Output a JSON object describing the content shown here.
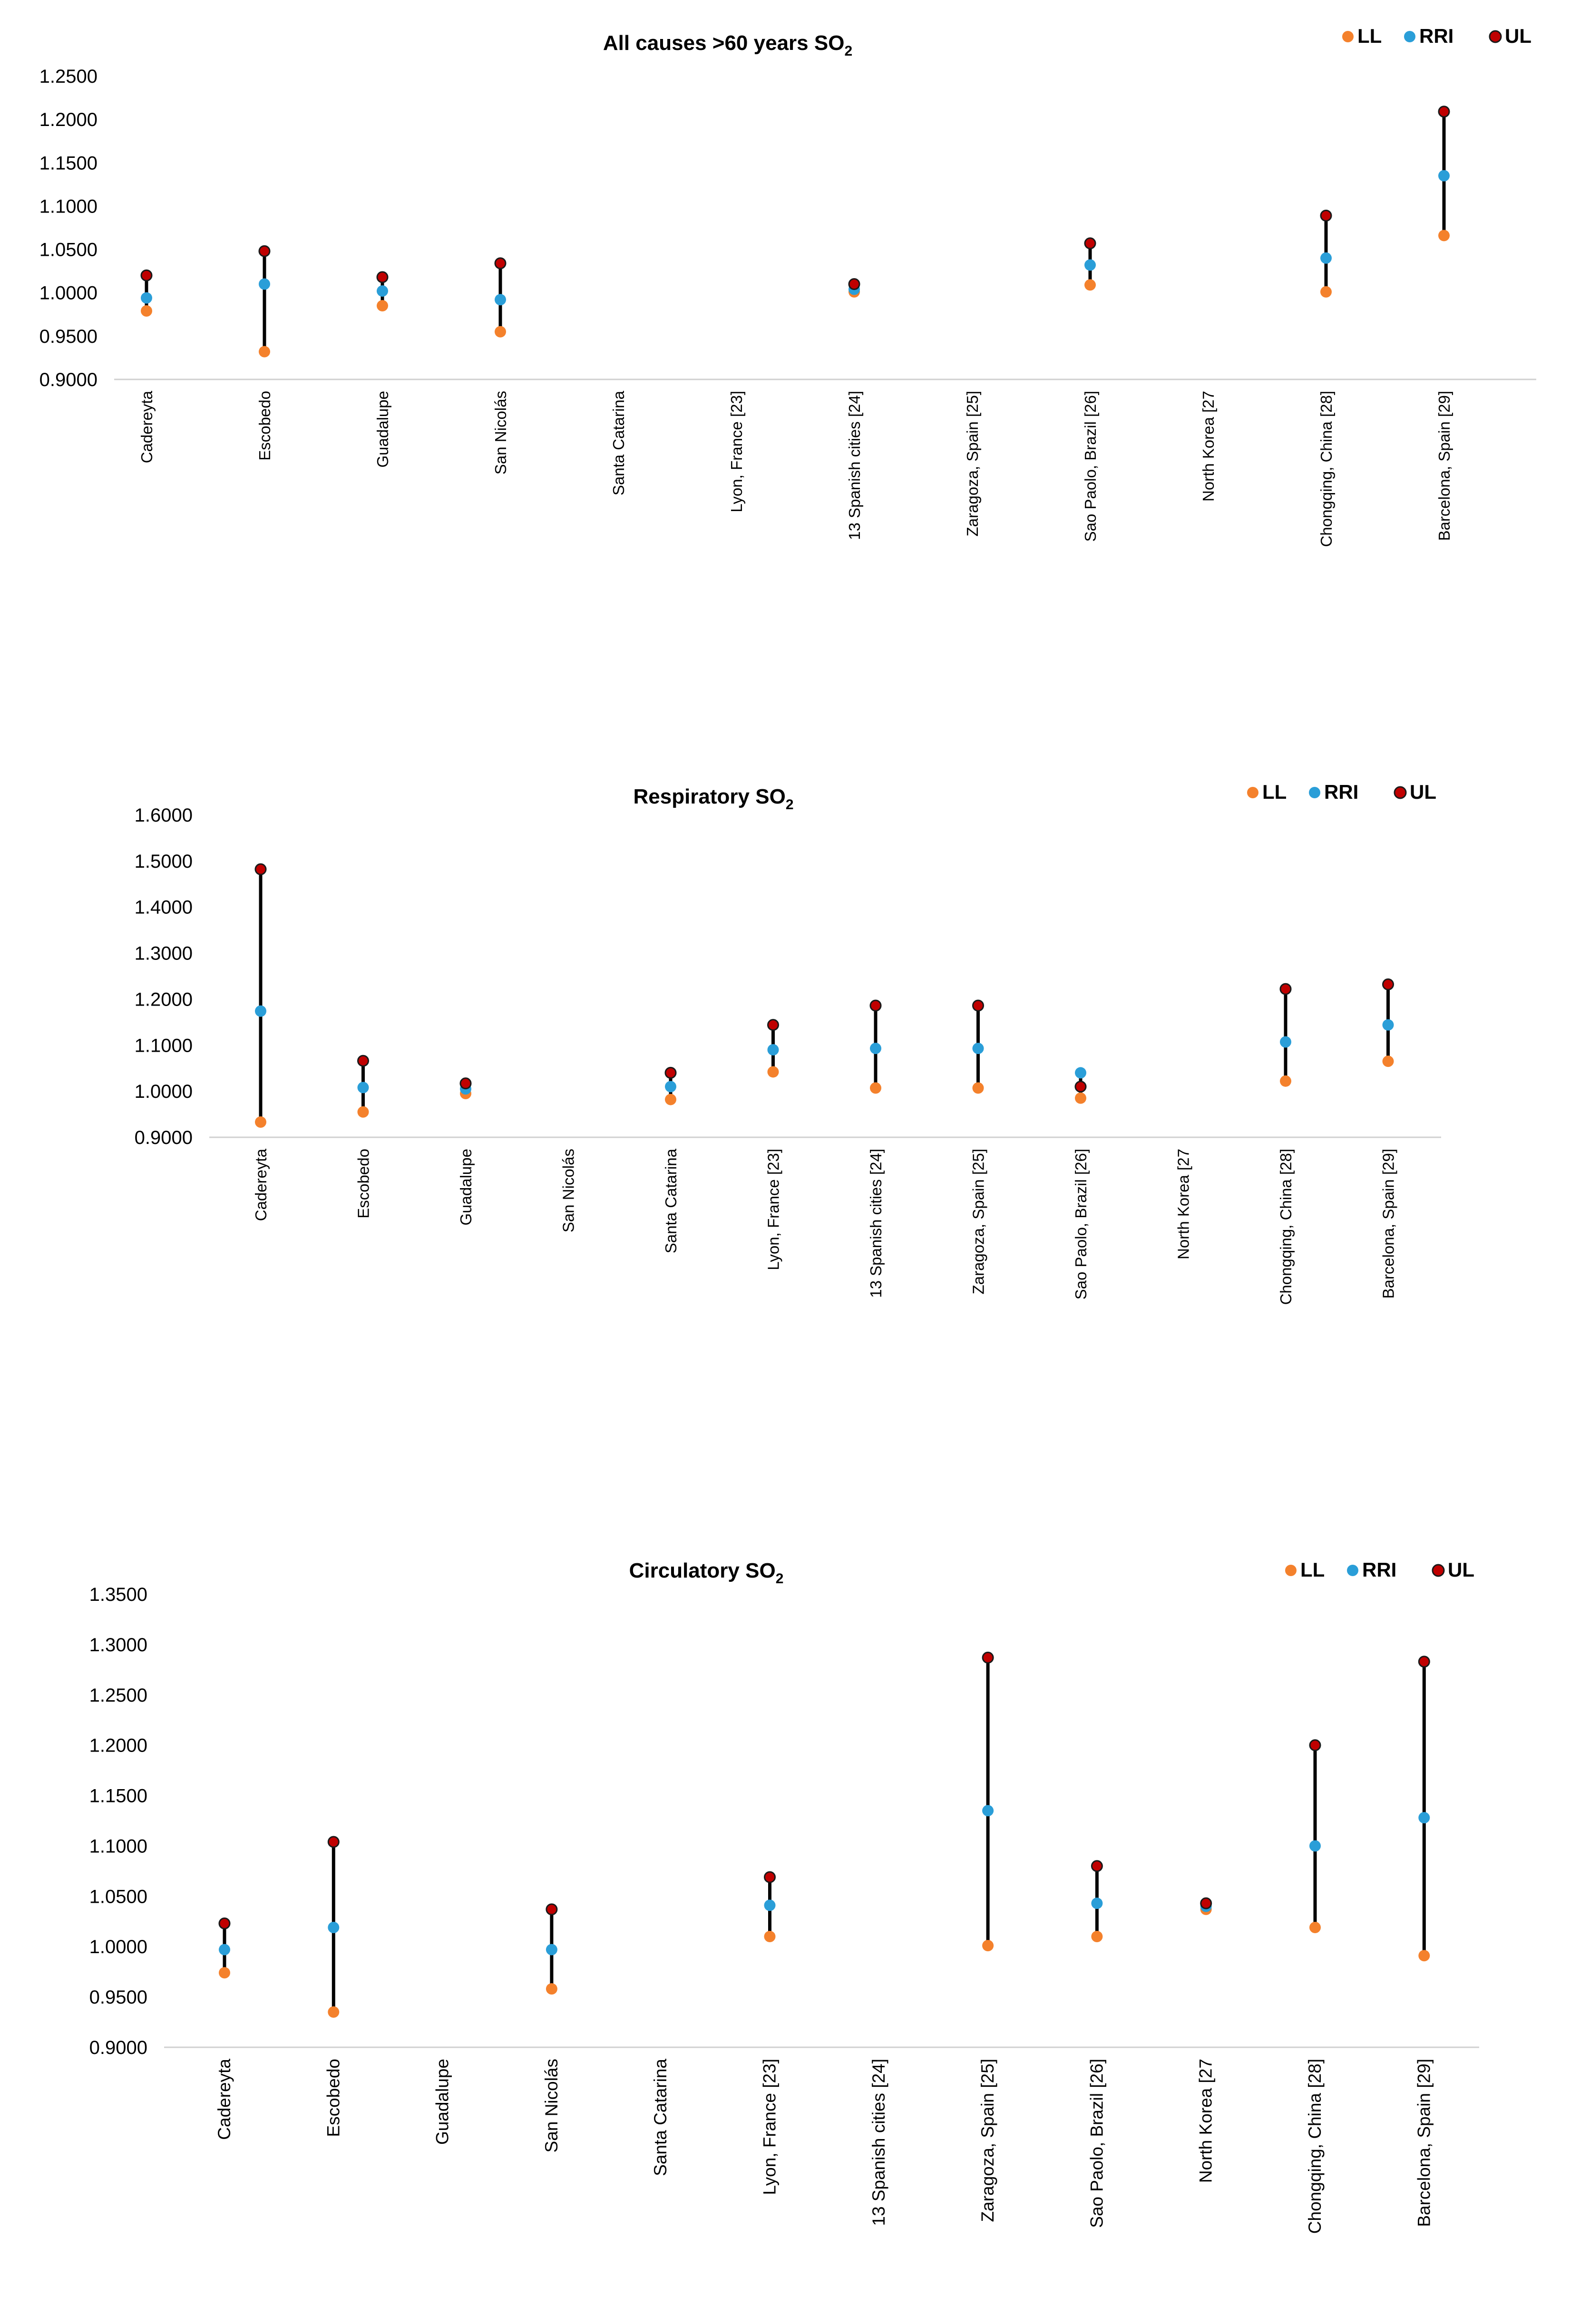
{
  "colors": {
    "LL": "#F4812C",
    "RRI": "#2A9ED8",
    "UL": "#C00000",
    "UL_outline": "#1a1a1a",
    "axis": "#d0d0d0",
    "whisker": "#000000"
  },
  "legend_labels": [
    "LL",
    "RRI",
    "UL"
  ],
  "chart_data": [
    {
      "type": "scatter",
      "title_main": "All causes >60 years SO",
      "title_sub": "2",
      "ylim": [
        0.9,
        1.25
      ],
      "yticks": [
        "1.2500",
        "1.2000",
        "1.1500",
        "1.1000",
        "1.0500",
        "1.0000",
        "0.9500",
        "0.9000"
      ],
      "ytick_values": [
        1.25,
        1.2,
        1.15,
        1.1,
        1.05,
        1.0,
        0.95,
        0.9
      ],
      "categories": [
        "Cadereyta",
        "Escobedo",
        "Guadalupe",
        "San Nicolás",
        "Santa Catarina",
        "Lyon, France [23]",
        "13 Spanish cities [24]",
        "Zaragoza, Spain [25]",
        "Sao Paolo, Brazil [26]",
        "North Korea [27",
        "Chongqing, China [28]",
        "Barcelona, Spain [29]"
      ],
      "series": [
        {
          "name": "LL",
          "values": [
            0.979,
            0.932,
            0.985,
            0.955,
            null,
            null,
            1.001,
            null,
            1.009,
            null,
            1.001,
            1.066
          ]
        },
        {
          "name": "RRI",
          "values": [
            0.994,
            1.01,
            1.002,
            0.992,
            null,
            null,
            1.004,
            null,
            1.032,
            null,
            1.04,
            1.135
          ]
        },
        {
          "name": "UL",
          "values": [
            1.02,
            1.048,
            1.018,
            1.034,
            null,
            null,
            1.01,
            null,
            1.057,
            null,
            1.089,
            1.209
          ]
        }
      ]
    },
    {
      "type": "scatter",
      "title_main": "Respiratory SO",
      "title_sub": "2",
      "ylim": [
        0.9,
        1.6
      ],
      "yticks": [
        "1.6000",
        "1.5000",
        "1.4000",
        "1.3000",
        "1.2000",
        "1.1000",
        "1.0000",
        "0.9000"
      ],
      "ytick_values": [
        1.6,
        1.5,
        1.4,
        1.3,
        1.2,
        1.1,
        1.0,
        0.9
      ],
      "categories": [
        "Cadereyta",
        "Escobedo",
        "Guadalupe",
        "San Nicolás",
        "Santa Catarina",
        "Lyon, France [23]",
        "13 Spanish cities [24]",
        "Zaragoza, Spain [25]",
        "Sao Paolo, Brazil [26]",
        "North Korea [27",
        "Chongqing, China [28]",
        "Barcelona, Spain [29]"
      ],
      "series": [
        {
          "name": "LL",
          "values": [
            0.933,
            0.955,
            0.995,
            null,
            0.982,
            1.042,
            1.007,
            1.007,
            0.985,
            null,
            1.022,
            1.065
          ]
        },
        {
          "name": "RRI",
          "values": [
            1.174,
            1.008,
            1.005,
            null,
            1.01,
            1.09,
            1.093,
            1.093,
            1.04,
            null,
            1.107,
            1.144
          ]
        },
        {
          "name": "UL",
          "values": [
            1.482,
            1.066,
            1.017,
            null,
            1.04,
            1.144,
            1.186,
            1.186,
            1.01,
            null,
            1.222,
            1.232
          ]
        }
      ]
    },
    {
      "type": "scatter",
      "title_main": "Circulatory  SO",
      "title_sub": "2",
      "ylim": [
        0.9,
        1.35
      ],
      "yticks": [
        "1.3500",
        "1.3000",
        "1.2500",
        "1.2000",
        "1.1500",
        "1.1000",
        "1.0500",
        "1.0000",
        "0.9500",
        "0.9000"
      ],
      "ytick_values": [
        1.35,
        1.3,
        1.25,
        1.2,
        1.15,
        1.1,
        1.05,
        1.0,
        0.95,
        0.9
      ],
      "categories": [
        "Cadereyta",
        "Escobedo",
        "Guadalupe",
        "San Nicolás",
        "Santa Catarina",
        "Lyon, France [23]",
        "13 Spanish cities [24]",
        "Zaragoza, Spain [25]",
        "Sao Paolo, Brazil [26]",
        "North Korea [27",
        "Chongqing, China [28]",
        "Barcelona, Spain [29]"
      ],
      "series": [
        {
          "name": "LL",
          "values": [
            0.974,
            0.935,
            null,
            0.958,
            null,
            1.01,
            null,
            1.001,
            1.01,
            1.037,
            1.019,
            0.991
          ]
        },
        {
          "name": "RRI",
          "values": [
            0.997,
            1.019,
            null,
            0.997,
            null,
            1.041,
            null,
            1.135,
            1.043,
            1.04,
            1.1,
            1.128
          ]
        },
        {
          "name": "UL",
          "values": [
            1.023,
            1.104,
            null,
            1.037,
            null,
            1.069,
            null,
            1.287,
            1.08,
            1.043,
            1.2,
            1.283
          ]
        }
      ]
    }
  ]
}
